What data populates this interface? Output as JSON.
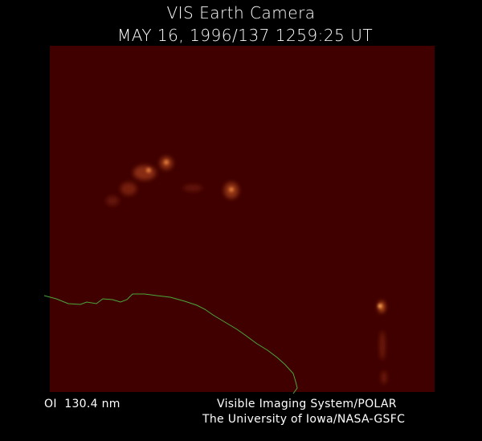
{
  "header": {
    "title": "VIS Earth Camera",
    "timestamp": "MAY 16, 1996/137 1259:25 UT"
  },
  "footer": {
    "filter": "OI  130.4 nm",
    "instrument": "Visible Imaging System/POLAR",
    "credit": "The University of Iowa/NASA-GSFC"
  }
}
